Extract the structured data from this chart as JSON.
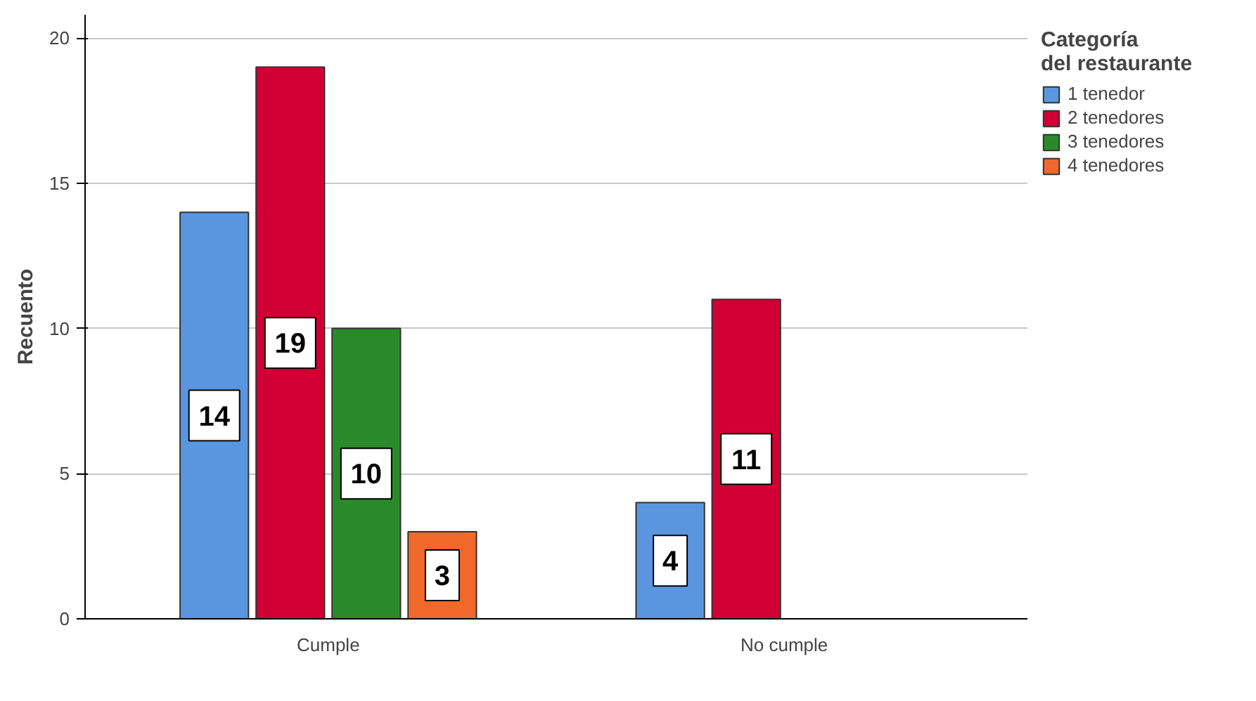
{
  "chart_data": {
    "type": "bar",
    "ylabel": "Recuento",
    "legend_title": "Categoría del restaurante",
    "categories": [
      "Cumple",
      "No cumple"
    ],
    "series": [
      {
        "name": "1 tenedor",
        "color": "#5a96e0",
        "values": [
          14,
          4
        ]
      },
      {
        "name": "2 tenedores",
        "color": "#d10034",
        "values": [
          19,
          11
        ]
      },
      {
        "name": "3 tenedores",
        "color": "#2a8a2a",
        "values": [
          10,
          null
        ]
      },
      {
        "name": "4 tenedores",
        "color": "#f0682a",
        "values": [
          3,
          null
        ]
      }
    ],
    "ylim": [
      0,
      20.8
    ],
    "yticks": [
      0,
      5,
      10,
      15,
      20
    ],
    "grid": "y",
    "legend": "right",
    "data_labels": true
  }
}
